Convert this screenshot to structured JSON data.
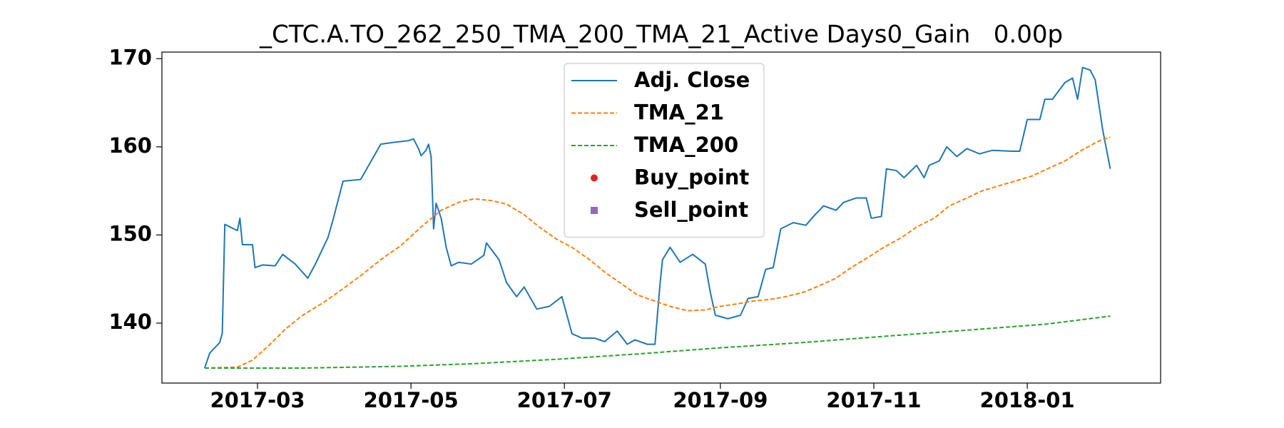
{
  "chart_data": {
    "type": "line",
    "title": "_CTC.A.TO_262_250_TMA_200_TMA_21_Active Days0_Gain   0.00p",
    "xlim": [
      "2017-01-22",
      "2018-02-23"
    ],
    "xticks": [
      {
        "value": "2017-03-01",
        "label": "2017-03"
      },
      {
        "value": "2017-05-01",
        "label": "2017-05"
      },
      {
        "value": "2017-07-01",
        "label": "2017-07"
      },
      {
        "value": "2017-09-01",
        "label": "2017-09"
      },
      {
        "value": "2017-11-01",
        "label": "2017-11"
      },
      {
        "value": "2018-01-01",
        "label": "2018-01"
      }
    ],
    "ylim": [
      133.2,
      170.75
    ],
    "yticks": [
      140,
      150,
      160,
      170
    ],
    "legend": "upper center",
    "series": [
      {
        "name": "Adj. Close",
        "color": "#1f77b4",
        "style": "solid",
        "x": [
          "2017-02-08",
          "2017-02-10",
          "2017-02-14",
          "2017-02-15",
          "2017-02-16",
          "2017-02-21",
          "2017-02-22",
          "2017-02-23",
          "2017-02-27",
          "2017-02-28",
          "2017-03-03",
          "2017-03-08",
          "2017-03-11",
          "2017-03-16",
          "2017-03-21",
          "2017-03-24",
          "2017-03-29",
          "2017-03-31",
          "2017-04-04",
          "2017-04-11",
          "2017-04-19",
          "2017-04-24",
          "2017-04-30",
          "2017-05-02",
          "2017-05-04",
          "2017-05-05",
          "2017-05-07",
          "2017-05-08",
          "2017-05-09",
          "2017-05-10",
          "2017-05-11",
          "2017-05-13",
          "2017-05-15",
          "2017-05-17",
          "2017-05-20",
          "2017-05-25",
          "2017-05-30",
          "2017-05-31",
          "2017-06-05",
          "2017-06-08",
          "2017-06-12",
          "2017-06-15",
          "2017-06-20",
          "2017-06-25",
          "2017-06-30",
          "2017-07-04",
          "2017-07-08",
          "2017-07-13",
          "2017-07-17",
          "2017-07-22",
          "2017-07-26",
          "2017-07-29",
          "2017-08-03",
          "2017-08-06",
          "2017-08-08",
          "2017-08-09",
          "2017-08-12",
          "2017-08-16",
          "2017-08-21",
          "2017-08-26",
          "2017-08-28",
          "2017-08-30",
          "2017-09-04",
          "2017-09-09",
          "2017-09-12",
          "2017-09-16",
          "2017-09-19",
          "2017-09-22",
          "2017-09-25",
          "2017-09-30",
          "2017-10-05",
          "2017-10-08",
          "2017-10-12",
          "2017-10-17",
          "2017-10-20",
          "2017-10-25",
          "2017-10-29",
          "2017-10-31",
          "2017-11-04",
          "2017-11-06",
          "2017-11-10",
          "2017-11-13",
          "2017-11-18",
          "2017-11-21",
          "2017-11-23",
          "2017-11-27",
          "2017-11-30",
          "2017-12-04",
          "2017-12-08",
          "2017-12-13",
          "2017-12-18",
          "2017-12-26",
          "2017-12-29",
          "2018-01-01",
          "2018-01-06",
          "2018-01-08",
          "2018-01-11",
          "2018-01-16",
          "2018-01-19",
          "2018-01-21",
          "2018-01-23",
          "2018-01-26",
          "2018-01-28",
          "2018-01-31",
          "2018-02-03"
        ],
        "values": [
          134.9,
          136.6,
          137.8,
          138.9,
          151.2,
          150.5,
          151.9,
          148.9,
          148.9,
          146.3,
          146.6,
          146.5,
          147.8,
          146.7,
          145.1,
          146.7,
          149.7,
          151.7,
          156.1,
          156.3,
          160.3,
          160.5,
          160.7,
          160.9,
          159.8,
          159.0,
          159.6,
          160.3,
          158.9,
          150.7,
          153.6,
          151.9,
          148.6,
          146.5,
          146.9,
          146.7,
          147.7,
          149.1,
          147.2,
          144.6,
          143.0,
          144.1,
          141.6,
          141.9,
          143.0,
          138.8,
          138.3,
          138.3,
          137.9,
          139.1,
          137.6,
          138.1,
          137.6,
          137.6,
          144.4,
          147.2,
          148.6,
          146.9,
          147.8,
          146.7,
          143.5,
          140.9,
          140.5,
          140.9,
          142.8,
          143.0,
          146.1,
          146.3,
          150.7,
          151.4,
          151.1,
          152.1,
          153.3,
          152.8,
          153.7,
          154.2,
          154.2,
          151.9,
          152.1,
          157.5,
          157.3,
          156.5,
          157.9,
          156.5,
          157.9,
          158.4,
          160.0,
          158.9,
          159.8,
          159.2,
          159.6,
          159.5,
          159.5,
          163.1,
          163.1,
          165.4,
          165.4,
          167.3,
          167.8,
          165.4,
          169.0,
          168.7,
          167.6,
          161.9,
          157.5
        ]
      },
      {
        "name": "TMA_21",
        "color": "#ff7f0e",
        "style": "dashed",
        "x": [
          "2017-02-08",
          "2017-02-21",
          "2017-02-27",
          "2017-03-06",
          "2017-03-12",
          "2017-03-19",
          "2017-03-27",
          "2017-04-04",
          "2017-04-12",
          "2017-04-19",
          "2017-04-27",
          "2017-05-05",
          "2017-05-13",
          "2017-05-20",
          "2017-05-26",
          "2017-06-02",
          "2017-06-08",
          "2017-06-15",
          "2017-06-21",
          "2017-06-28",
          "2017-07-04",
          "2017-07-11",
          "2017-07-17",
          "2017-07-24",
          "2017-07-30",
          "2017-08-06",
          "2017-08-12",
          "2017-08-19",
          "2017-08-26",
          "2017-09-01",
          "2017-09-08",
          "2017-09-14",
          "2017-09-21",
          "2017-09-27",
          "2017-10-04",
          "2017-10-10",
          "2017-10-17",
          "2017-10-23",
          "2017-10-30",
          "2017-11-05",
          "2017-11-12",
          "2017-11-18",
          "2017-11-25",
          "2017-12-01",
          "2017-12-08",
          "2017-12-14",
          "2017-12-21",
          "2017-12-27",
          "2018-01-03",
          "2018-01-09",
          "2018-01-16",
          "2018-01-22",
          "2018-01-29",
          "2018-02-03"
        ],
        "values": [
          134.9,
          135.0,
          135.8,
          137.6,
          139.3,
          140.9,
          142.3,
          143.9,
          145.6,
          147.2,
          148.8,
          150.9,
          152.8,
          153.7,
          154.1,
          153.9,
          153.5,
          152.3,
          150.9,
          149.5,
          148.6,
          147.2,
          145.8,
          144.4,
          143.2,
          142.5,
          141.9,
          141.4,
          141.5,
          141.9,
          142.2,
          142.5,
          142.7,
          143.0,
          143.5,
          144.2,
          145.1,
          146.3,
          147.5,
          148.6,
          149.7,
          150.9,
          151.9,
          153.3,
          154.2,
          155.0,
          155.6,
          156.1,
          156.7,
          157.5,
          158.4,
          159.5,
          160.6,
          161.1
        ]
      },
      {
        "name": "TMA_200",
        "color": "#2ca02c",
        "style": "dashed",
        "x": [
          "2017-02-08",
          "2017-03-19",
          "2017-04-27",
          "2017-05-26",
          "2017-06-28",
          "2017-07-30",
          "2017-09-01",
          "2017-10-04",
          "2017-11-05",
          "2017-12-08",
          "2018-01-09",
          "2018-02-03"
        ],
        "values": [
          134.9,
          134.9,
          135.1,
          135.4,
          135.9,
          136.5,
          137.2,
          137.8,
          138.5,
          139.2,
          139.9,
          140.8
        ]
      },
      {
        "name": "Buy_point",
        "color": "#d62728",
        "style": "marker-circle",
        "x": [],
        "values": []
      },
      {
        "name": "Sell_point",
        "color": "#9467bd",
        "style": "marker-square",
        "x": [],
        "values": []
      }
    ]
  }
}
